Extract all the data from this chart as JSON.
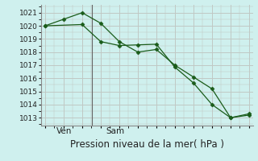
{
  "line1_x": [
    0,
    1,
    2,
    3,
    4,
    5,
    6,
    7,
    8,
    9,
    10,
    11
  ],
  "line1_y": [
    1020,
    1020.5,
    1021.0,
    1020.2,
    1018.8,
    1018.0,
    1018.2,
    1017.0,
    1016.1,
    1015.2,
    1013.0,
    1013.2
  ],
  "line2_x": [
    0,
    2,
    3,
    4,
    5,
    6,
    7,
    8,
    9,
    10,
    11
  ],
  "line2_y": [
    1020,
    1020.1,
    1018.8,
    1018.5,
    1018.55,
    1018.6,
    1016.85,
    1015.65,
    1014.0,
    1013.0,
    1013.3
  ],
  "line_color": "#1a5c1a",
  "bg_color": "#cff0ee",
  "grid_major_color": "#c0c8c4",
  "ylabel_ticks": [
    1013,
    1014,
    1015,
    1016,
    1017,
    1018,
    1019,
    1020,
    1021
  ],
  "ylim": [
    1012.4,
    1021.6
  ],
  "xlim": [
    -0.2,
    11.2
  ],
  "ven_x": 0.6,
  "sam_x": 3.3,
  "vline_x": 2.55,
  "xlabel": "Pression niveau de la mer( hPa )",
  "tick_fontsize": 6.5,
  "day_fontsize": 7.5,
  "xlabel_fontsize": 8.5
}
